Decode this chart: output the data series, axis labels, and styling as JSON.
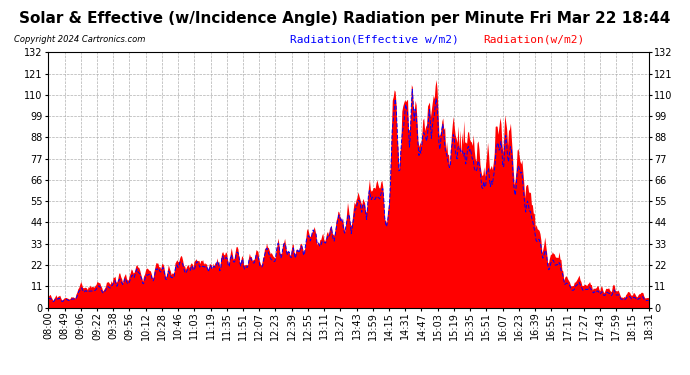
{
  "title": "Solar & Effective (w/Incidence Angle) Radiation per Minute Fri Mar 22 18:44",
  "copyright": "Copyright 2024 Cartronics.com",
  "legend_blue": "Radiation(Effective w/m2)",
  "legend_red": "Radiation(w/m2)",
  "ylim": [
    0,
    132.0
  ],
  "yticks": [
    0.0,
    11.0,
    22.0,
    33.0,
    44.0,
    55.0,
    66.0,
    77.0,
    88.0,
    99.0,
    110.0,
    121.0,
    132.0
  ],
  "background_color": "#ffffff",
  "plot_bg_color": "#ffffff",
  "grid_color": "#b0b0b0",
  "area_color": "#ff0000",
  "line_color": "#0000ff",
  "title_fontsize": 11,
  "tick_fontsize": 7,
  "legend_fontsize": 8,
  "copyright_fontsize": 6,
  "xtick_labels": [
    "08:00",
    "08:49",
    "09:06",
    "09:22",
    "09:38",
    "09:56",
    "10:12",
    "10:28",
    "10:46",
    "11:03",
    "11:19",
    "11:35",
    "11:51",
    "12:07",
    "12:23",
    "12:39",
    "12:55",
    "13:11",
    "13:27",
    "13:43",
    "13:59",
    "14:15",
    "14:31",
    "14:47",
    "15:03",
    "15:19",
    "15:35",
    "15:51",
    "16:07",
    "16:23",
    "16:39",
    "16:55",
    "17:11",
    "17:27",
    "17:43",
    "17:59",
    "18:15",
    "18:31"
  ],
  "figsize": [
    6.9,
    3.75
  ],
  "dpi": 100
}
